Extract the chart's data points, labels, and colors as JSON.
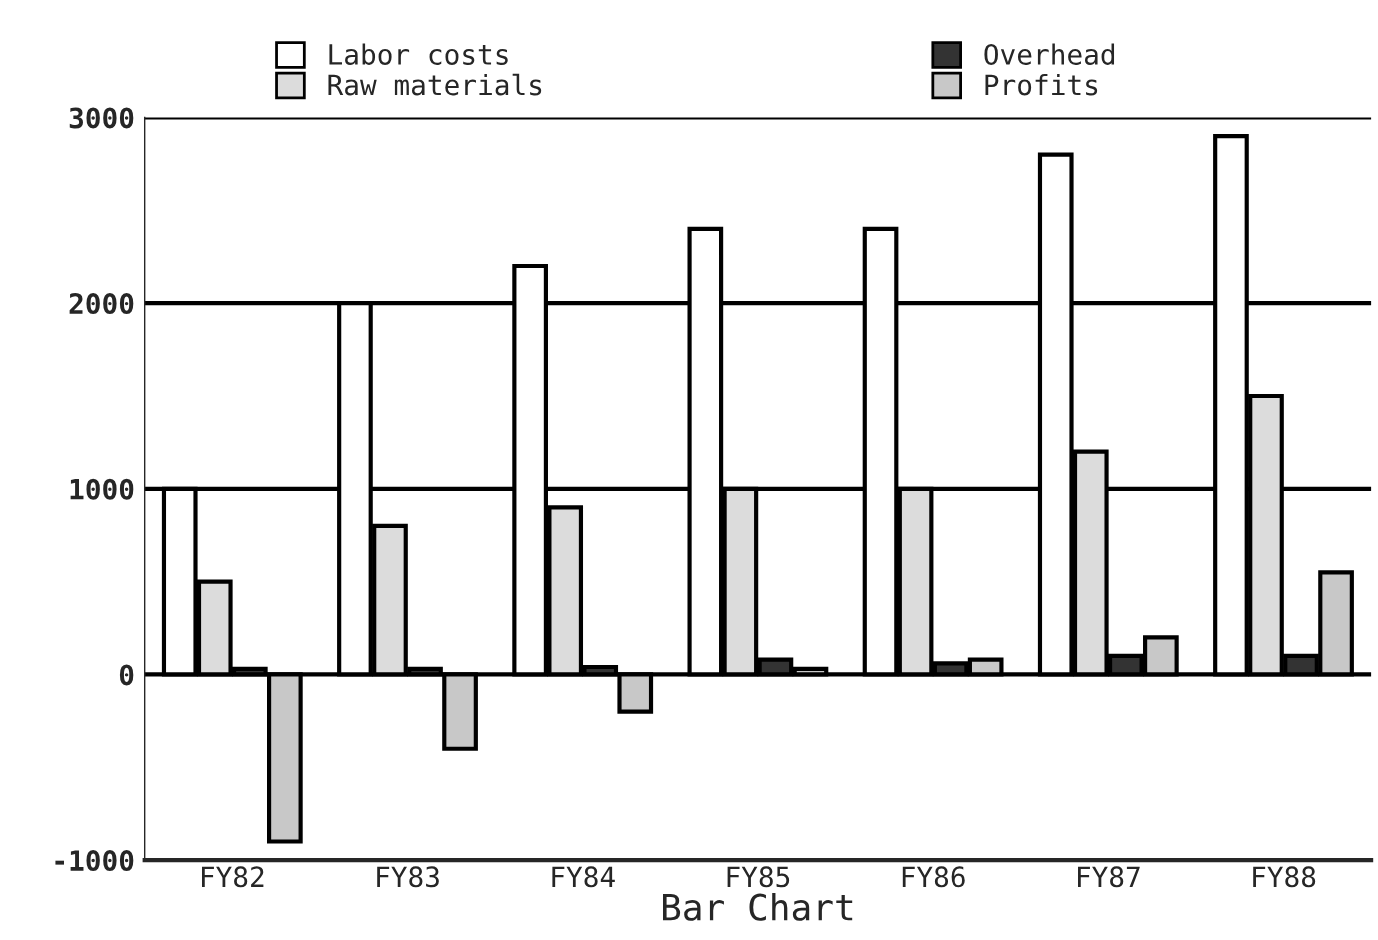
{
  "chart_data": {
    "type": "bar",
    "xlabel": "Bar Chart",
    "categories": [
      "FY82",
      "FY83",
      "FY84",
      "FY85",
      "FY86",
      "FY87",
      "FY88"
    ],
    "series": [
      {
        "name": "Labor costs",
        "color": "#ffffff",
        "values": [
          1000,
          2000,
          2200,
          2400,
          2400,
          2800,
          2900
        ]
      },
      {
        "name": "Raw materials",
        "color": "#dcdcdc",
        "values": [
          500,
          800,
          900,
          1000,
          1000,
          1200,
          1500
        ]
      },
      {
        "name": "Overhead",
        "color": "#333333",
        "values": [
          30,
          30,
          40,
          80,
          60,
          100,
          100
        ]
      },
      {
        "name": "Profits",
        "color": "#c8c8c8",
        "values": [
          -900,
          -400,
          -200,
          30,
          80,
          200,
          550
        ]
      }
    ],
    "ylim": [
      -1000,
      3000
    ],
    "yticks": [
      -1000,
      0,
      1000,
      2000,
      3000
    ],
    "grid": "y",
    "legend": "top"
  }
}
